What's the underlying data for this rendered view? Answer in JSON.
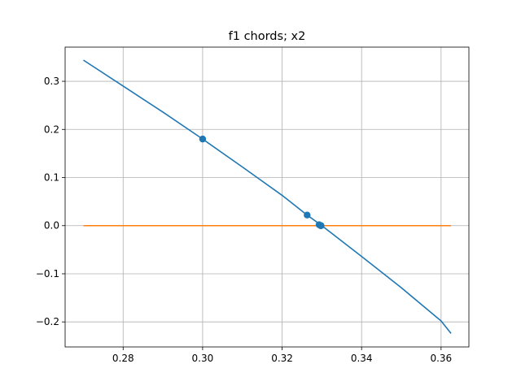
{
  "chart_data": {
    "type": "line",
    "title": "f1 chords; x2",
    "xlabel": "",
    "ylabel": "",
    "xlim": [
      0.2654,
      0.367
    ],
    "ylim": [
      -0.252,
      0.371
    ],
    "grid": true,
    "x_ticks": [
      0.28,
      0.3,
      0.32,
      0.34,
      0.36
    ],
    "x_tick_labels": [
      "0.28",
      "0.30",
      "0.32",
      "0.34",
      "0.36"
    ],
    "y_ticks": [
      -0.2,
      -0.1,
      0.0,
      0.1,
      0.2,
      0.3
    ],
    "y_tick_labels": [
      "−0.2",
      "−0.1",
      "0.0",
      "0.1",
      "0.2",
      "0.3"
    ],
    "series": [
      {
        "kind": "line",
        "color": "#1f77b4",
        "points": [
          [
            0.27,
            0.344
          ],
          [
            0.28,
            0.29
          ],
          [
            0.29,
            0.236
          ],
          [
            0.3,
            0.18
          ],
          [
            0.31,
            0.122
          ],
          [
            0.32,
            0.063
          ],
          [
            0.3263,
            0.022
          ],
          [
            0.33,
            0.0
          ],
          [
            0.34,
            -0.064
          ],
          [
            0.35,
            -0.129
          ],
          [
            0.36,
            -0.198
          ],
          [
            0.3625,
            -0.224
          ]
        ]
      },
      {
        "kind": "line",
        "color": "#ff7f0e",
        "points": [
          [
            0.27,
            0.0
          ],
          [
            0.3625,
            0.0
          ]
        ]
      },
      {
        "kind": "scatter",
        "color": "#1f77b4",
        "points": [
          [
            0.3,
            0.18
          ],
          [
            0.3263,
            0.022
          ],
          [
            0.3293,
            0.002
          ],
          [
            0.3297,
            0.0
          ],
          [
            0.3298,
            0.0
          ]
        ]
      }
    ]
  }
}
